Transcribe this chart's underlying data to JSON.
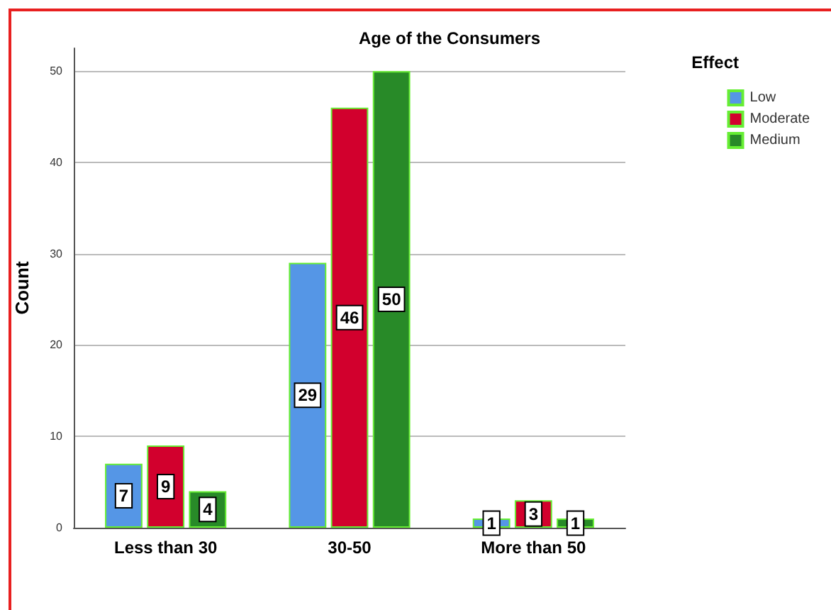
{
  "chart_data": {
    "type": "bar",
    "title": "Age of the Consumers",
    "ylabel": "Count",
    "legend_title": "Effect",
    "categories": [
      "Less than 30",
      "30-50",
      "More than 50"
    ],
    "series": [
      {
        "name": "Low",
        "color": "#5596e6",
        "values": [
          7,
          29,
          1
        ]
      },
      {
        "name": "Moderate",
        "color": "#d2002d",
        "values": [
          9,
          46,
          3
        ]
      },
      {
        "name": "Medium",
        "color": "#288a28",
        "values": [
          4,
          50,
          1
        ]
      }
    ],
    "ylim": [
      0,
      52.5
    ],
    "yticks": [
      0,
      10,
      20,
      30,
      40,
      50
    ],
    "grid": "y",
    "legend": "top right",
    "data_labels": true
  }
}
